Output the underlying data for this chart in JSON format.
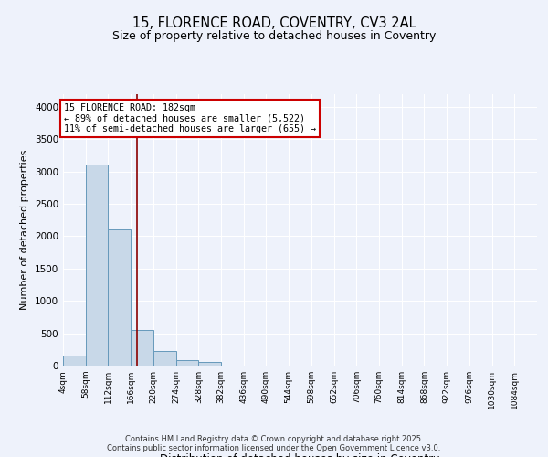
{
  "title_line1": "15, FLORENCE ROAD, COVENTRY, CV3 2AL",
  "title_line2": "Size of property relative to detached houses in Coventry",
  "xlabel": "Distribution of detached houses by size in Coventry",
  "ylabel": "Number of detached properties",
  "bin_labels": [
    "4sqm",
    "58sqm",
    "112sqm",
    "166sqm",
    "220sqm",
    "274sqm",
    "328sqm",
    "382sqm",
    "436sqm",
    "490sqm",
    "544sqm",
    "598sqm",
    "652sqm",
    "706sqm",
    "760sqm",
    "814sqm",
    "868sqm",
    "922sqm",
    "976sqm",
    "1030sqm",
    "1084sqm"
  ],
  "bin_edges": [
    4,
    58,
    112,
    166,
    220,
    274,
    328,
    382,
    436,
    490,
    544,
    598,
    652,
    706,
    760,
    814,
    868,
    922,
    976,
    1030,
    1084
  ],
  "bar_heights": [
    150,
    3100,
    2100,
    550,
    220,
    80,
    60,
    0,
    0,
    0,
    0,
    0,
    0,
    0,
    0,
    0,
    0,
    0,
    0,
    0
  ],
  "bar_color": "#c8d8e8",
  "bar_edge_color": "#6699bb",
  "property_size": 182,
  "vertical_line_color": "#8b0000",
  "ylim": [
    0,
    4200
  ],
  "yticks": [
    0,
    500,
    1000,
    1500,
    2000,
    2500,
    3000,
    3500,
    4000
  ],
  "annotation_text": "15 FLORENCE ROAD: 182sqm\n← 89% of detached houses are smaller (5,522)\n11% of semi-detached houses are larger (655) →",
  "annotation_box_color": "#ffffff",
  "annotation_box_edge": "#cc0000",
  "footer_line1": "Contains HM Land Registry data © Crown copyright and database right 2025.",
  "footer_line2": "Contains public sector information licensed under the Open Government Licence v3.0.",
  "background_color": "#eef2fb",
  "plot_bg_color": "#eef2fb",
  "grid_color": "#ffffff"
}
